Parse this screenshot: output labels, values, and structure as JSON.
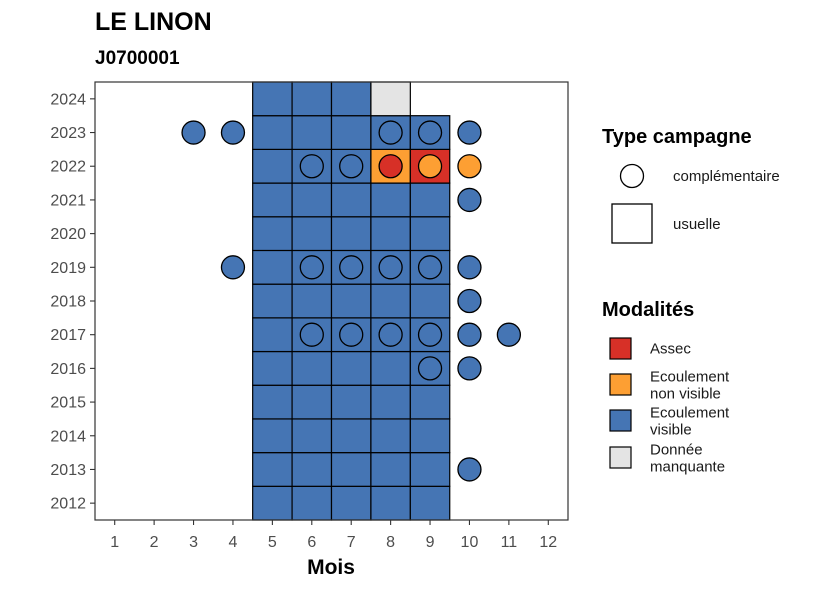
{
  "chart_data": {
    "type": "heatmap",
    "title": "LE LINON",
    "subtitle": "J0700001",
    "xlabel": "Mois",
    "ylabel": "",
    "x_ticks": [
      1,
      2,
      3,
      4,
      5,
      6,
      7,
      8,
      9,
      10,
      11,
      12
    ],
    "y_ticks": [
      2012,
      2013,
      2014,
      2015,
      2016,
      2017,
      2018,
      2019,
      2020,
      2021,
      2022,
      2023,
      2024
    ],
    "xlim": [
      0.5,
      12.5
    ],
    "ylim": [
      2011.5,
      2024.5
    ],
    "grid": false,
    "colors": {
      "Assec": "#d73027",
      "Ecoulement non visible": "#fd9f33",
      "Ecoulement visible": "#4575b4",
      "Donnée manquante": "#e4e4e4"
    },
    "usuelle": [
      {
        "year": 2012,
        "months": [
          5,
          6,
          7,
          8,
          9
        ],
        "modalite": "Ecoulement visible"
      },
      {
        "year": 2013,
        "months": [
          5,
          6,
          7,
          8,
          9
        ],
        "modalite": "Ecoulement visible"
      },
      {
        "year": 2014,
        "months": [
          5,
          6,
          7,
          8,
          9
        ],
        "modalite": "Ecoulement visible"
      },
      {
        "year": 2015,
        "months": [
          5,
          6,
          7,
          8,
          9
        ],
        "modalite": "Ecoulement visible"
      },
      {
        "year": 2016,
        "months": [
          5,
          6,
          7,
          8,
          9
        ],
        "modalite": "Ecoulement visible"
      },
      {
        "year": 2017,
        "months": [
          5,
          6,
          7,
          8,
          9
        ],
        "modalite": "Ecoulement visible"
      },
      {
        "year": 2018,
        "months": [
          5,
          6,
          7,
          8,
          9
        ],
        "modalite": "Ecoulement visible"
      },
      {
        "year": 2019,
        "months": [
          5,
          6,
          7,
          8,
          9
        ],
        "modalite": "Ecoulement visible"
      },
      {
        "year": 2020,
        "months": [
          5,
          6,
          7,
          8,
          9
        ],
        "modalite": "Ecoulement visible"
      },
      {
        "year": 2021,
        "months": [
          5,
          6,
          7,
          8,
          9
        ],
        "modalite": "Ecoulement visible"
      },
      {
        "year": 2022,
        "months": [
          5,
          6,
          7
        ],
        "modalite": "Ecoulement visible"
      },
      {
        "year": 2022,
        "months": [
          8
        ],
        "modalite": "Ecoulement non visible"
      },
      {
        "year": 2022,
        "months": [
          9
        ],
        "modalite": "Assec"
      },
      {
        "year": 2023,
        "months": [
          5,
          6,
          7,
          8,
          9
        ],
        "modalite": "Ecoulement visible"
      },
      {
        "year": 2024,
        "months": [
          5,
          6,
          7
        ],
        "modalite": "Ecoulement visible"
      },
      {
        "year": 2024,
        "months": [
          8
        ],
        "modalite": "Donnée manquante"
      }
    ],
    "complementaire": [
      {
        "year": 2013,
        "month": 10,
        "modalite": "Ecoulement visible"
      },
      {
        "year": 2016,
        "month": 9,
        "modalite": "Ecoulement visible"
      },
      {
        "year": 2016,
        "month": 10,
        "modalite": "Ecoulement visible"
      },
      {
        "year": 2017,
        "month": 6,
        "modalite": "Ecoulement visible"
      },
      {
        "year": 2017,
        "month": 7,
        "modalite": "Ecoulement visible"
      },
      {
        "year": 2017,
        "month": 8,
        "modalite": "Ecoulement visible"
      },
      {
        "year": 2017,
        "month": 9,
        "modalite": "Ecoulement visible"
      },
      {
        "year": 2017,
        "month": 10,
        "modalite": "Ecoulement visible"
      },
      {
        "year": 2017,
        "month": 11,
        "modalite": "Ecoulement visible"
      },
      {
        "year": 2018,
        "month": 10,
        "modalite": "Ecoulement visible"
      },
      {
        "year": 2019,
        "month": 4,
        "modalite": "Ecoulement visible"
      },
      {
        "year": 2019,
        "month": 6,
        "modalite": "Ecoulement visible"
      },
      {
        "year": 2019,
        "month": 7,
        "modalite": "Ecoulement visible"
      },
      {
        "year": 2019,
        "month": 8,
        "modalite": "Ecoulement visible"
      },
      {
        "year": 2019,
        "month": 9,
        "modalite": "Ecoulement visible"
      },
      {
        "year": 2019,
        "month": 10,
        "modalite": "Ecoulement visible"
      },
      {
        "year": 2021,
        "month": 10,
        "modalite": "Ecoulement visible"
      },
      {
        "year": 2022,
        "month": 6,
        "modalite": "Ecoulement visible"
      },
      {
        "year": 2022,
        "month": 7,
        "modalite": "Ecoulement visible"
      },
      {
        "year": 2022,
        "month": 8,
        "modalite": "Assec"
      },
      {
        "year": 2022,
        "month": 9,
        "modalite": "Ecoulement non visible"
      },
      {
        "year": 2022,
        "month": 10,
        "modalite": "Ecoulement non visible"
      },
      {
        "year": 2023,
        "month": 3,
        "modalite": "Ecoulement visible"
      },
      {
        "year": 2023,
        "month": 4,
        "modalite": "Ecoulement visible"
      },
      {
        "year": 2023,
        "month": 8,
        "modalite": "Ecoulement visible"
      },
      {
        "year": 2023,
        "month": 9,
        "modalite": "Ecoulement visible"
      },
      {
        "year": 2023,
        "month": 10,
        "modalite": "Ecoulement visible"
      }
    ]
  },
  "legend": {
    "type_title": "Type campagne",
    "type_items": [
      {
        "label": "complémentaire",
        "shape": "circle"
      },
      {
        "label": "usuelle",
        "shape": "square"
      }
    ],
    "modalites_title": "Modalités",
    "modalites_items": [
      {
        "lines": [
          "Assec"
        ],
        "color": "#d73027"
      },
      {
        "lines": [
          "Ecoulement",
          "non visible"
        ],
        "color": "#fd9f33"
      },
      {
        "lines": [
          "Ecoulement",
          "visible"
        ],
        "color": "#4575b4"
      },
      {
        "lines": [
          "Donnée",
          "manquante"
        ],
        "color": "#e4e4e4"
      }
    ]
  }
}
